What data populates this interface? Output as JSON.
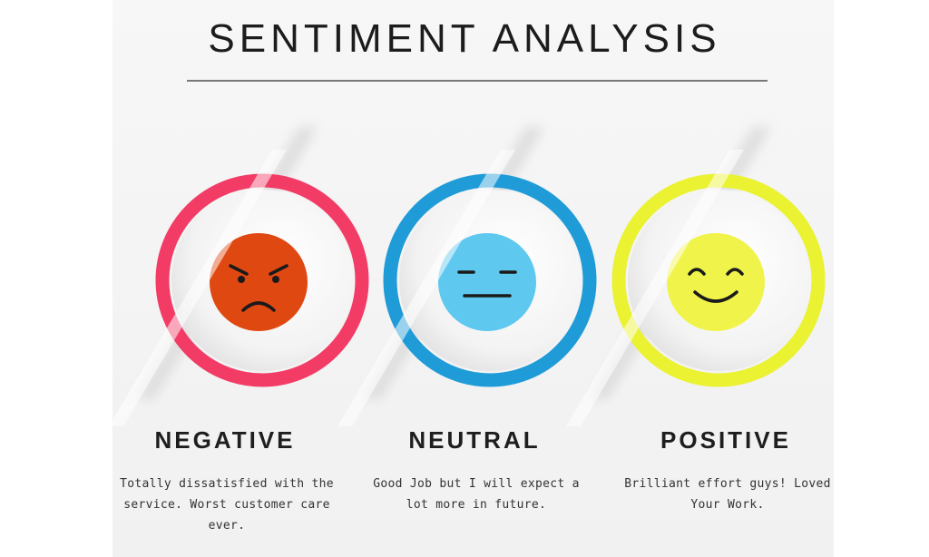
{
  "title": "SENTIMENT ANALYSIS",
  "colors": {
    "negative": "#f23c66",
    "negative_face": "#e04812",
    "neutral": "#1f9bd8",
    "neutral_face": "#5ec8ef",
    "positive": "#eaf231",
    "positive_face": "#f0f44a"
  },
  "sentiments": [
    {
      "label": "NEGATIVE",
      "icon": "angry-face-icon",
      "description": "Totally dissatisfied with the service. Worst customer care ever."
    },
    {
      "label": "NEUTRAL",
      "icon": "neutral-face-icon",
      "description": "Good Job but I will expect a lot more in future."
    },
    {
      "label": "POSITIVE",
      "icon": "smiling-face-icon",
      "description": "Brilliant effort guys! Loved Your Work."
    }
  ]
}
